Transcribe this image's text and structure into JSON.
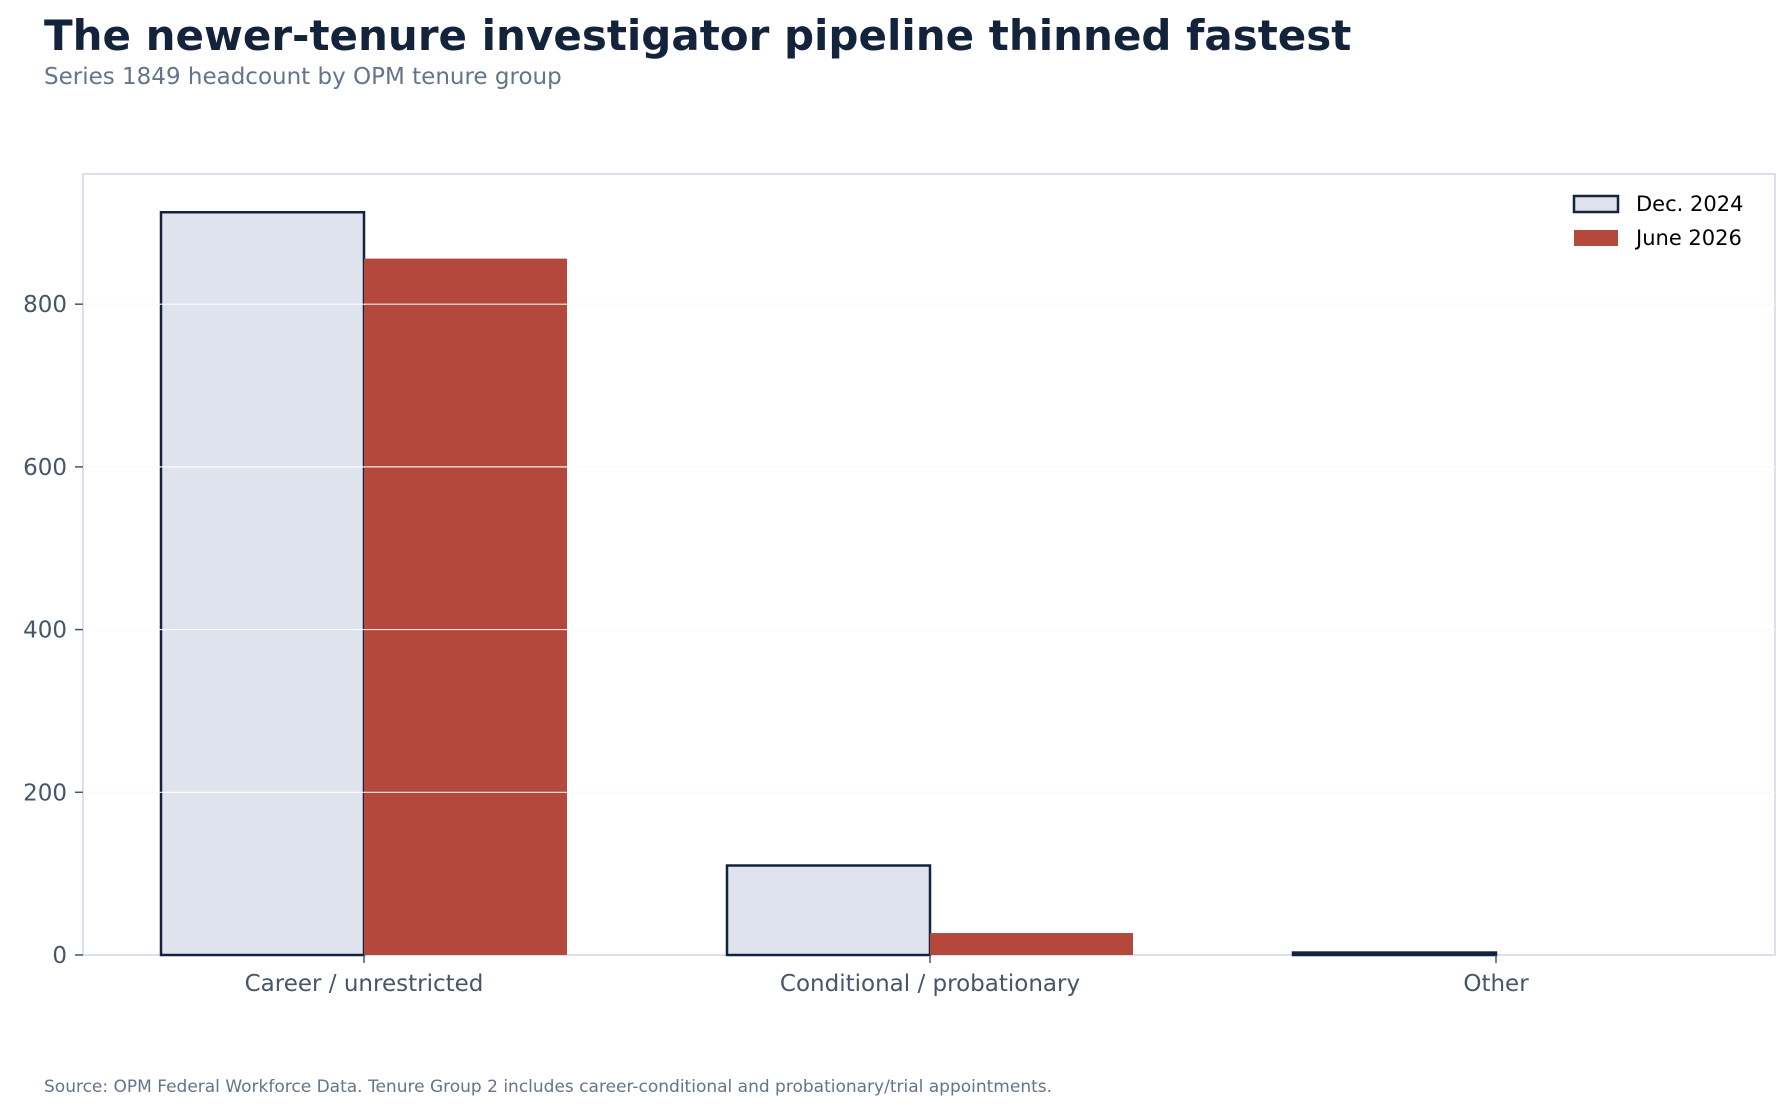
{
  "chart_data": {
    "type": "bar",
    "title": "The newer-tenure investigator pipeline thinned fastest",
    "subtitle": "Series 1849 headcount by OPM tenure group",
    "source": "Source: OPM Federal Workforce Data. Tenure Group 2 includes career-conditional and probationary/trial appointments.",
    "categories": [
      "Career / unrestricted",
      "Conditional / probationary",
      "Other"
    ],
    "series": [
      {
        "name": "Dec. 2024",
        "values": [
          913,
          110,
          3
        ]
      },
      {
        "name": "June 2026",
        "values": [
          856,
          27,
          0
        ]
      }
    ],
    "y_ticks": [
      "0",
      "200",
      "400",
      "600",
      "800"
    ],
    "ylim": [
      0,
      960
    ],
    "xlabel": "",
    "ylabel": "",
    "grid": "horizontal",
    "legend_position": "top-right"
  },
  "colors": {
    "title": "#14233c",
    "subtitle": "#64748b",
    "tick_label": "#475569",
    "source": "#64748b",
    "frame": "#cfd6e6",
    "gridline": "#e5e7eb",
    "dec_fill": "#dee3ed",
    "dec_edge": "#14233c",
    "june_fill": "#b5483c"
  }
}
